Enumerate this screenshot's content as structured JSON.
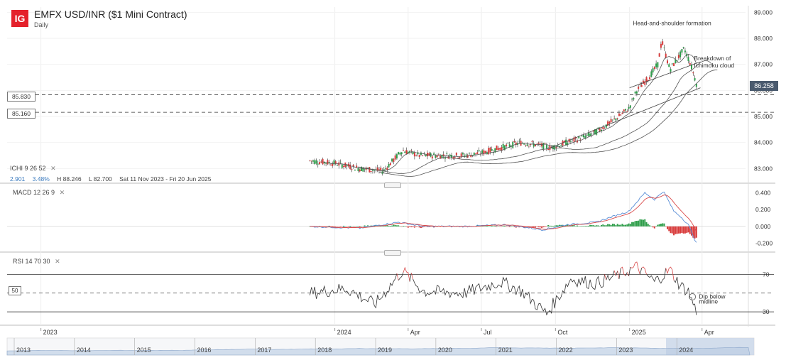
{
  "header": {
    "logo": "IG",
    "title": "EMFX USD/INR ($1 Mini Contract)",
    "interval": "Daily"
  },
  "indicators": {
    "ichimoku": {
      "name": "ICHI",
      "params": "9  26  52",
      "change": "2.901",
      "change_pct": "3.48%",
      "high": "H 88.246",
      "low": "L 82.700",
      "range": "Sat 11 Nov 2023 - Fri 20 Jun 2025"
    },
    "macd": {
      "name": "MACD",
      "params": "12  26  9"
    },
    "rsi": {
      "name": "RSI",
      "params": "14  70  30",
      "mid_tag": "50"
    }
  },
  "levels": {
    "upper": "85.830",
    "lower": "85.160",
    "last": "86.258"
  },
  "annotations": {
    "hs": "Head-and-shoulder formation",
    "breakdown_line1": "Breakdown of",
    "breakdown_line2": "Ichimoku cloud",
    "dip_line1": "Dip below",
    "dip_line2": "midline"
  },
  "chart_data": [
    {
      "type": "line",
      "title": "EMFX USD/INR ($1 Mini Contract)",
      "series": [
        {
          "name": "",
          "x": [
            "2023-12-01",
            "2024-01-01",
            "2024-02-01",
            "2024-03-01",
            "2024-03-25",
            "2024-04-15",
            "2024-05-15",
            "2024-06-10",
            "2024-07-01",
            "2024-07-25",
            "2024-08-20",
            "2024-09-10",
            "2024-09-25",
            "2024-10-15",
            "2024-11-05",
            "2024-11-20",
            "2024-12-10",
            "2024-12-31",
            "2025-01-10",
            "2025-01-25",
            "2025-02-05",
            "2025-02-10",
            "2025-02-20",
            "2025-03-01",
            "2025-03-10",
            "2025-03-18",
            "2025-03-25"
          ],
          "y": [
            83.3,
            83.2,
            83.0,
            82.9,
            83.7,
            83.5,
            83.5,
            83.5,
            83.6,
            83.8,
            84.0,
            83.9,
            83.8,
            84.0,
            84.2,
            84.4,
            84.8,
            85.3,
            86.0,
            86.5,
            87.0,
            87.9,
            86.8,
            87.2,
            87.6,
            87.0,
            86.26
          ]
        }
      ],
      "ylim": [
        82.6,
        89.2
      ],
      "yticks": [
        "83.000",
        "84.000",
        "85.000",
        "86.000",
        "87.000",
        "88.000",
        "89.000"
      ],
      "xticks": [
        "2023",
        "2024",
        "Apr",
        "Jul",
        "Oct",
        "2025",
        "Apr"
      ],
      "horizontal_lines": [
        85.83,
        85.16
      ]
    },
    {
      "type": "line",
      "title": "MACD",
      "series": [
        {
          "name": "",
          "x": [
            "2023-12-01",
            "2024-02-01",
            "2024-03-20",
            "2024-04-20",
            "2024-06-10",
            "2024-08-01",
            "2024-09-15",
            "2024-10-15",
            "2024-11-20",
            "2024-12-31",
            "2025-01-20",
            "2025-02-01",
            "2025-02-12",
            "2025-02-25",
            "2025-03-05",
            "2025-03-15",
            "2025-03-25"
          ],
          "y": [
            0.0,
            -0.02,
            0.05,
            0.0,
            0.0,
            0.02,
            -0.04,
            0.02,
            0.05,
            0.18,
            0.4,
            0.32,
            0.42,
            0.18,
            0.12,
            0.02,
            -0.2
          ]
        }
      ],
      "ylim": [
        -0.28,
        0.48
      ],
      "yticks": [
        "-0.200",
        "0.000",
        "0.200",
        "0.400"
      ]
    },
    {
      "type": "line",
      "title": "RSI",
      "series": [
        {
          "name": "",
          "x": [
            "2023-12-01",
            "2024-01-15",
            "2024-02-20",
            "2024-03-25",
            "2024-04-20",
            "2024-06-10",
            "2024-07-25",
            "2024-08-20",
            "2024-09-20",
            "2024-10-20",
            "2024-11-20",
            "2024-12-20",
            "2025-01-10",
            "2025-02-01",
            "2025-02-20",
            "2025-03-05",
            "2025-03-15",
            "2025-03-25"
          ],
          "y": [
            50,
            55,
            38,
            74,
            52,
            50,
            62,
            52,
            28,
            65,
            60,
            70,
            78,
            62,
            75,
            58,
            52,
            30
          ]
        }
      ],
      "ylim": [
        18,
        90
      ],
      "yticks": [
        "30",
        "70"
      ],
      "horizontal_lines": [
        70,
        50,
        30
      ]
    }
  ],
  "navigator": {
    "years": [
      "2013",
      "2014",
      "2015",
      "2016",
      "2017",
      "2018",
      "2019",
      "2020",
      "2021",
      "2022",
      "2023",
      "2024"
    ]
  }
}
